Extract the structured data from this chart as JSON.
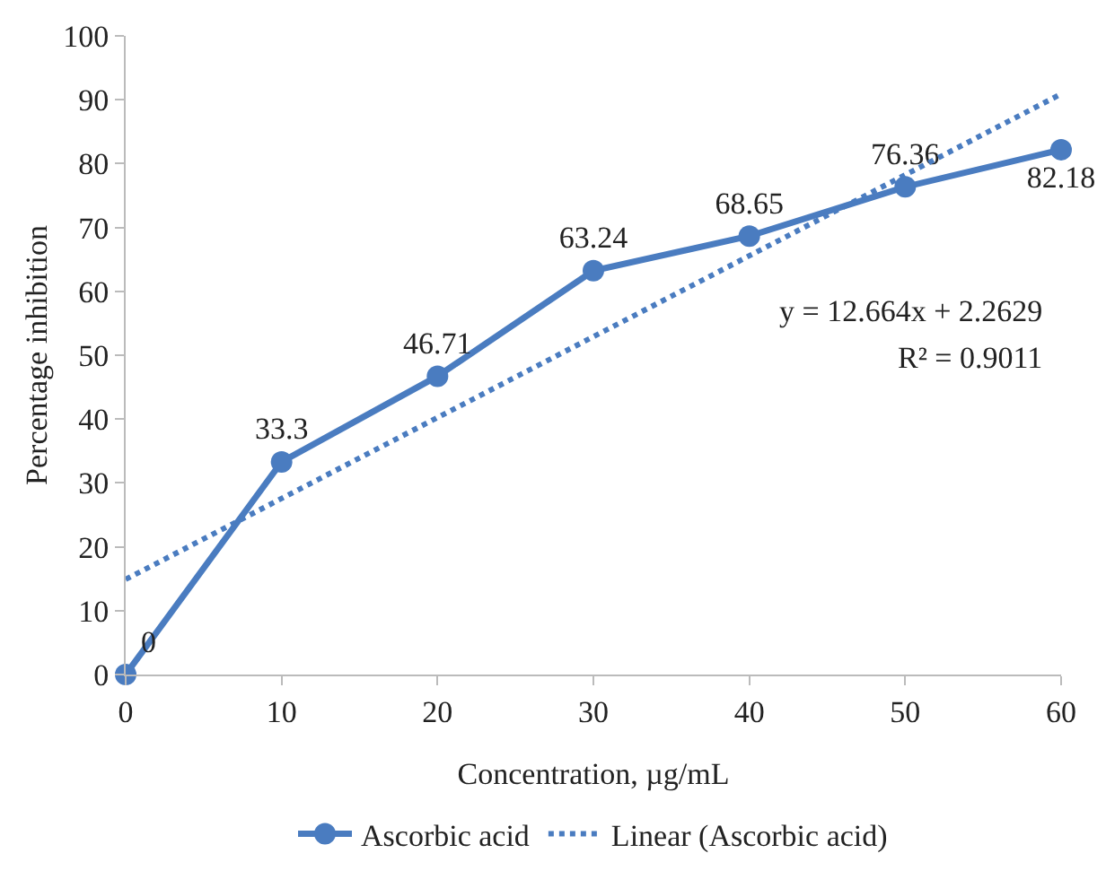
{
  "chart_data": {
    "type": "line",
    "xlabel": "Concentration, µg/mL",
    "ylabel": "Percentage inhibition",
    "x": [
      0,
      10,
      20,
      30,
      40,
      50,
      60
    ],
    "series": [
      {
        "name": "Ascorbic acid",
        "color": "#4a7cc0",
        "values": [
          0,
          33.3,
          46.71,
          63.24,
          68.65,
          76.36,
          82.18
        ],
        "marker": "circle",
        "line_style": "solid",
        "value_labels": [
          "0",
          "33.3",
          "46.71",
          "63.24",
          "68.65",
          "76.36",
          "82.18"
        ]
      },
      {
        "name": "Linear (Ascorbic acid)",
        "color": "#4a7cc0",
        "x": [
          0,
          60
        ],
        "values": [
          14.9,
          90.9
        ],
        "marker": "none",
        "line_style": "dotted"
      }
    ],
    "annotations": [
      "y = 12.664x + 2.2629",
      "R² = 0.9011"
    ],
    "xlim": [
      0,
      60
    ],
    "xticks": [
      0,
      10,
      20,
      30,
      40,
      50,
      60
    ],
    "ylim": [
      0,
      100
    ],
    "yticks": [
      0,
      10,
      20,
      30,
      40,
      50,
      60,
      70,
      80,
      90,
      100
    ],
    "grid": false,
    "legend": "bottom"
  }
}
